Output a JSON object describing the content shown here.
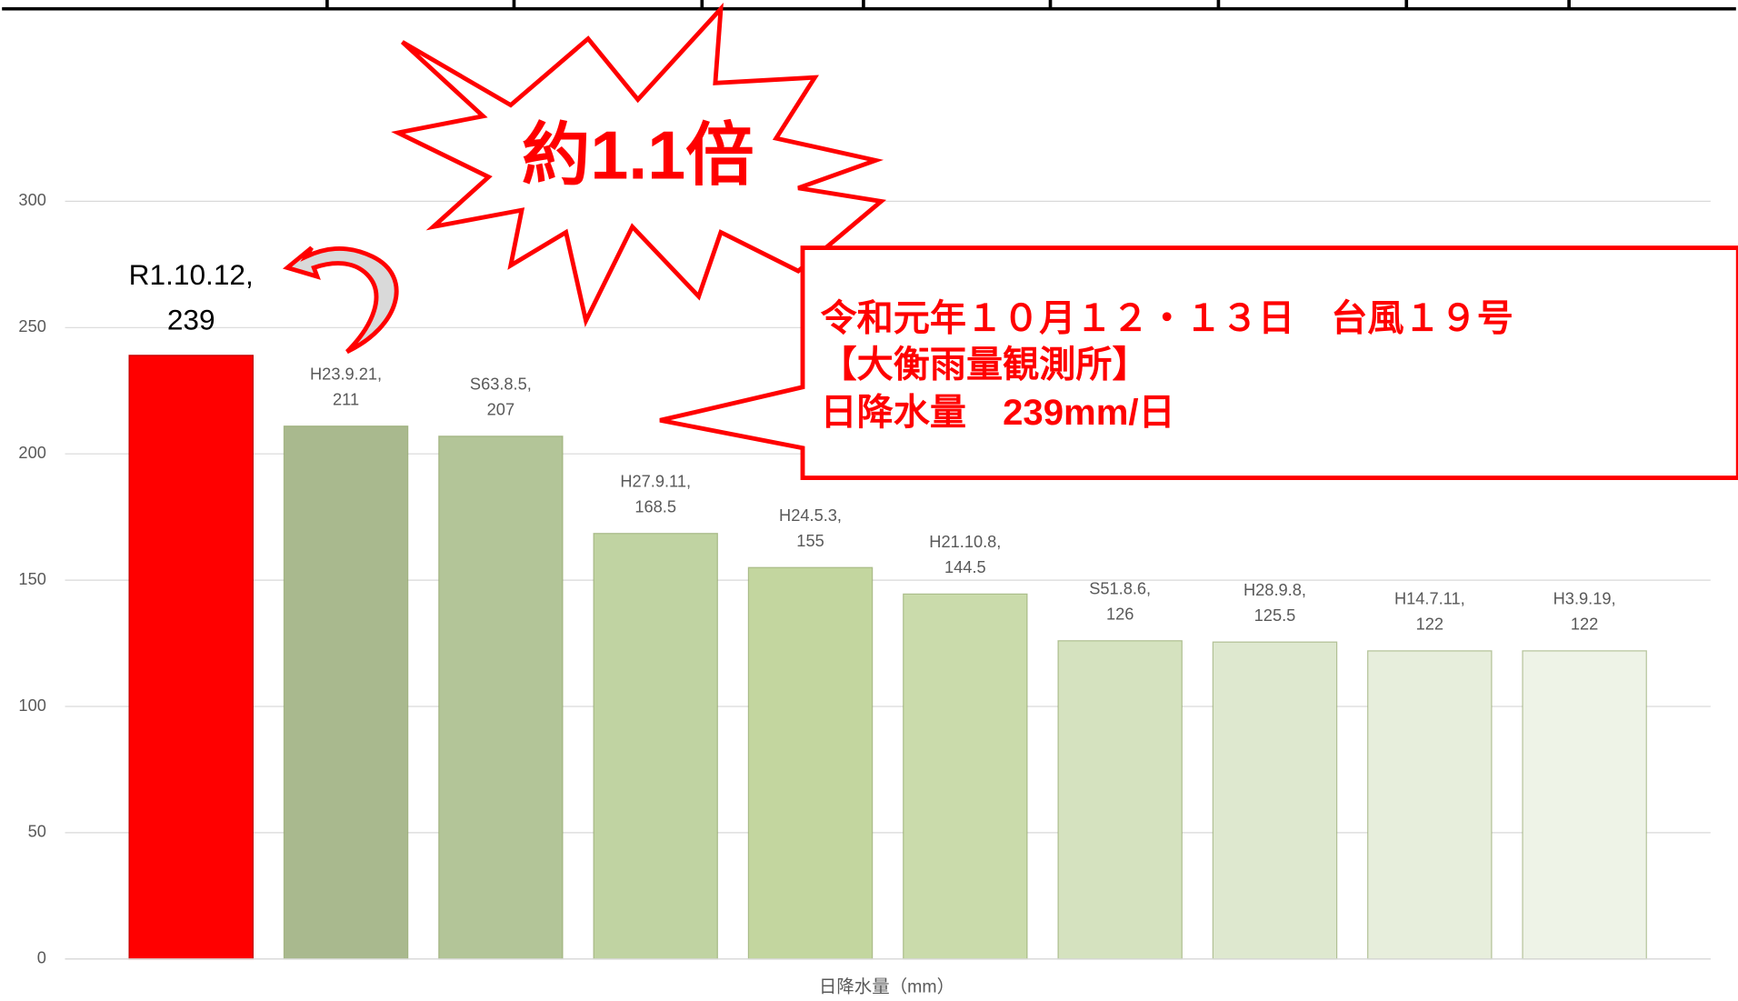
{
  "chart_data": {
    "type": "bar",
    "categories": [
      "R1.10.12,",
      "H23.9.21,",
      "S63.8.5,",
      "H27.9.11,",
      "H24.5.3,",
      "H21.10.8,",
      "S51.8.6,",
      "H28.9.8,",
      "H14.7.11,",
      "H3.9.19,"
    ],
    "values": [
      239,
      211,
      207,
      168.5,
      155,
      144.5,
      126,
      125.5,
      122,
      122
    ],
    "colors": [
      "#ff0000",
      "#a9b98e",
      "#b3c598",
      "#c0d3a2",
      "#c3d69f",
      "#cadbab",
      "#d5e2bf",
      "#dee8cf",
      "#e7eedc",
      "#eef3e7"
    ],
    "ylim": [
      0,
      300
    ],
    "yticks": [
      0,
      50,
      100,
      150,
      200,
      250,
      300
    ],
    "grid": true,
    "xlabel": "日降水量（mm）",
    "burst_text": "約1.1倍",
    "callout": [
      "令和元年１０月１２・１３日　台風１９号",
      "【大衡雨量観測所】",
      "日降水量　239mm/日"
    ]
  }
}
